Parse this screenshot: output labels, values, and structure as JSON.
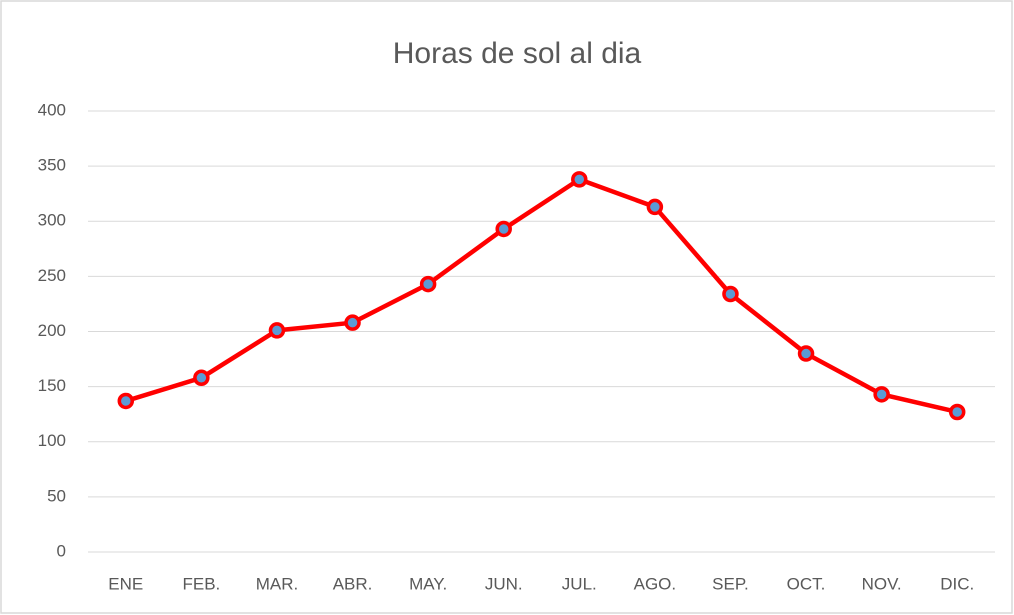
{
  "chart_data": {
    "type": "line",
    "title": "Horas de sol al dia",
    "categories": [
      "ENE",
      "FEB.",
      "MAR.",
      "ABR.",
      "MAY.",
      "JUN.",
      "JUL.",
      "AGO.",
      "SEP.",
      "OCT.",
      "NOV.",
      "DIC."
    ],
    "values": [
      137,
      158,
      201,
      208,
      243,
      293,
      338,
      313,
      234,
      180,
      143,
      127
    ],
    "color": "#ff0000",
    "marker_fill": "#5b9bd5",
    "ylim": [
      0,
      400
    ],
    "yticks": [
      0,
      50,
      100,
      150,
      200,
      250,
      300,
      350,
      400
    ],
    "grid": true
  }
}
